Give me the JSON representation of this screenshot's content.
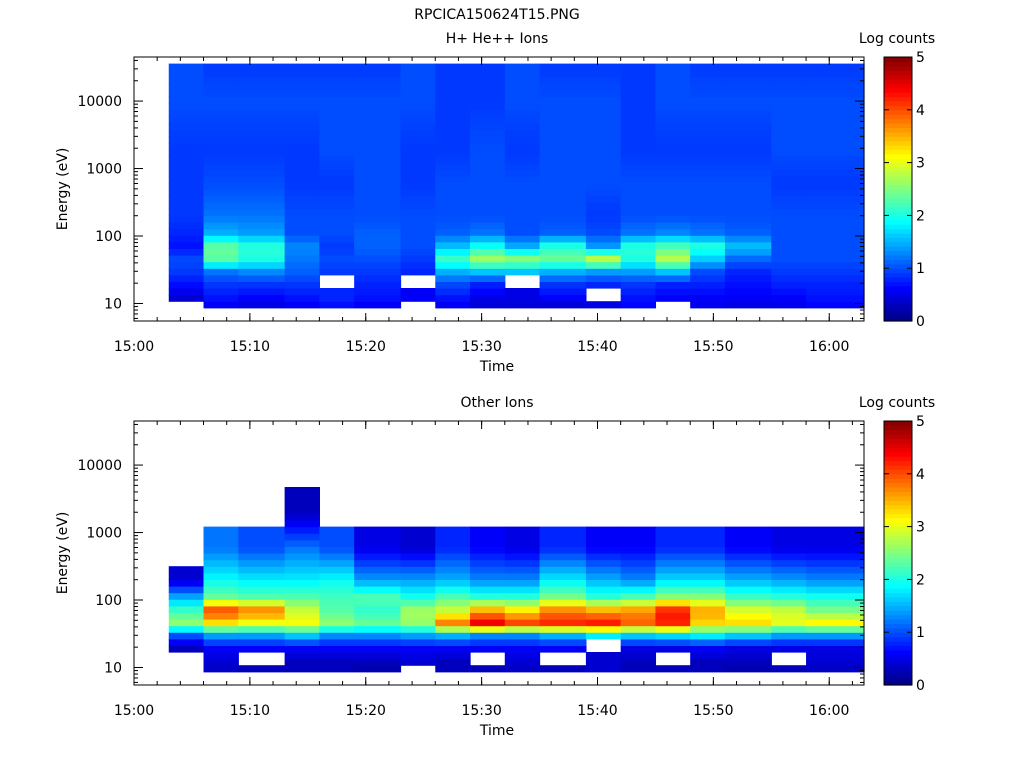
{
  "figure_title": "RPCICA150624T15.PNG",
  "colorbar_label": "Log counts",
  "colorbar_ticks": [
    "0",
    "1",
    "2",
    "3",
    "4",
    "5"
  ],
  "colormap": [
    "#00007f",
    "#0000ff",
    "#007fff",
    "#00ffff",
    "#7fff7f",
    "#ffff00",
    "#ff7f00",
    "#ff0000",
    "#7f0000"
  ],
  "chart_data": [
    {
      "type": "heatmap",
      "title": "H+ He++ Ions",
      "xlabel": "Time",
      "ylabel": "Energy (eV)",
      "x_ticks": [
        "15:00",
        "15:10",
        "15:20",
        "15:30",
        "15:40",
        "15:50",
        "16:00"
      ],
      "y_ticks": [
        "10",
        "100",
        "1000",
        "10000"
      ],
      "y_scale": "log",
      "ylim": [
        5.5,
        45000
      ],
      "xlim": [
        "15:00",
        "16:03"
      ],
      "z_range": [
        0,
        5
      ],
      "time_bins": [
        "15:03",
        "15:06",
        "15:09",
        "15:13",
        "15:16",
        "15:19",
        "15:23",
        "15:26",
        "15:29",
        "15:32",
        "15:35",
        "15:39",
        "15:42",
        "15:45",
        "15:48",
        "15:51",
        "15:55",
        "15:58"
      ],
      "profile_eV": [
        8,
        12,
        20,
        30,
        45,
        70,
        110,
        200,
        600,
        2000,
        10000,
        40000
      ],
      "profile_log_counts": [
        [
          null,
          0.4,
          0.7,
          0.9,
          1.0,
          0.7,
          0.8,
          0.9,
          0.9,
          0.9,
          1.0,
          1.0
        ],
        [
          0.5,
          0.7,
          0.9,
          1.2,
          2.3,
          2.4,
          1.5,
          1.2,
          1.0,
          0.9,
          1.0,
          0.9
        ],
        [
          0.4,
          0.6,
          0.9,
          1.3,
          2.0,
          2.1,
          1.4,
          1.2,
          1.0,
          0.9,
          1.0,
          0.9
        ],
        [
          0.5,
          0.7,
          0.9,
          1.1,
          1.2,
          1.3,
          1.0,
          1.0,
          0.9,
          0.9,
          1.0,
          0.9
        ],
        [
          0.6,
          0.8,
          null,
          0.9,
          1.0,
          0.9,
          1.0,
          1.0,
          0.9,
          1.0,
          1.0,
          0.9
        ],
        [
          0.5,
          0.7,
          0.8,
          0.9,
          1.0,
          1.1,
          1.1,
          1.0,
          1.0,
          1.0,
          1.0,
          0.9
        ],
        [
          null,
          0.6,
          null,
          0.8,
          0.9,
          1.0,
          1.0,
          1.0,
          0.9,
          0.9,
          1.0,
          1.0
        ],
        [
          0.5,
          0.7,
          1.0,
          1.5,
          2.2,
          1.6,
          1.1,
          1.0,
          1.0,
          0.9,
          0.9,
          0.9
        ],
        [
          0.4,
          0.5,
          0.8,
          1.6,
          2.7,
          2.0,
          1.2,
          1.0,
          1.0,
          1.0,
          0.9,
          0.9
        ],
        [
          0.4,
          0.5,
          null,
          1.6,
          2.6,
          1.5,
          1.0,
          1.0,
          1.0,
          0.9,
          1.0,
          1.0
        ],
        [
          0.3,
          0.6,
          0.9,
          1.5,
          2.4,
          2.1,
          1.1,
          1.0,
          1.0,
          1.0,
          1.0,
          0.9
        ],
        [
          0.5,
          null,
          0.8,
          1.4,
          2.9,
          1.4,
          1.0,
          0.9,
          1.0,
          1.0,
          1.0,
          0.9
        ],
        [
          0.6,
          0.7,
          0.9,
          1.4,
          2.0,
          2.1,
          1.2,
          1.0,
          1.0,
          0.9,
          0.9,
          0.9
        ],
        [
          null,
          0.6,
          0.8,
          1.6,
          2.8,
          2.3,
          1.3,
          1.0,
          1.0,
          0.9,
          1.0,
          1.0
        ],
        [
          0.5,
          0.6,
          0.8,
          1.0,
          1.6,
          2.1,
          1.2,
          1.0,
          1.0,
          0.9,
          1.0,
          0.9
        ],
        [
          0.4,
          0.6,
          0.7,
          0.8,
          1.1,
          1.6,
          1.1,
          1.0,
          1.0,
          0.9,
          1.0,
          0.9
        ],
        [
          0.5,
          0.6,
          0.8,
          0.9,
          1.0,
          1.0,
          1.0,
          1.0,
          0.9,
          1.0,
          1.0,
          0.9
        ],
        [
          0.6,
          0.7,
          0.8,
          0.9,
          1.0,
          1.0,
          1.0,
          1.0,
          0.9,
          1.0,
          1.0,
          0.9
        ]
      ]
    },
    {
      "type": "heatmap",
      "title": "Other Ions",
      "xlabel": "Time",
      "ylabel": "Energy (eV)",
      "x_ticks": [
        "15:00",
        "15:10",
        "15:20",
        "15:30",
        "15:40",
        "15:50",
        "16:00"
      ],
      "y_ticks": [
        "10",
        "100",
        "1000",
        "10000"
      ],
      "y_scale": "log",
      "ylim": [
        5.5,
        45000
      ],
      "xlim": [
        "15:00",
        "16:03"
      ],
      "z_range": [
        0,
        5
      ],
      "time_bins": [
        "15:03",
        "15:06",
        "15:09",
        "15:13",
        "15:16",
        "15:19",
        "15:23",
        "15:26",
        "15:29",
        "15:32",
        "15:35",
        "15:39",
        "15:42",
        "15:45",
        "15:48",
        "15:51",
        "15:55",
        "15:58"
      ],
      "profile_eV": [
        8,
        12,
        20,
        30,
        45,
        70,
        110,
        200,
        600,
        2000,
        10000,
        40000
      ],
      "profile_log_counts": [
        [
          null,
          null,
          0.3,
          1.0,
          2.6,
          2.2,
          1.5,
          0.4,
          null,
          null,
          null,
          null
        ],
        [
          0.3,
          0.4,
          0.6,
          1.4,
          3.2,
          4.1,
          2.4,
          1.9,
          1.2,
          null,
          null,
          null
        ],
        [
          0.3,
          null,
          0.6,
          1.4,
          3.0,
          3.8,
          2.3,
          1.8,
          1.0,
          null,
          null,
          null
        ],
        [
          0.3,
          0.3,
          0.6,
          1.6,
          3.1,
          2.9,
          2.3,
          1.8,
          1.2,
          0.3,
          null,
          null
        ],
        [
          0.3,
          0.3,
          0.6,
          1.3,
          2.6,
          2.3,
          2.2,
          1.9,
          1.0,
          null,
          null,
          null
        ],
        [
          0.2,
          0.3,
          0.6,
          1.3,
          2.4,
          2.1,
          2.3,
          1.4,
          0.5,
          null,
          null,
          null
        ],
        [
          null,
          0.4,
          0.6,
          1.4,
          2.6,
          2.7,
          2.0,
          1.4,
          0.4,
          null,
          null,
          null
        ],
        [
          0.3,
          0.3,
          0.6,
          1.5,
          3.8,
          2.9,
          2.3,
          1.5,
          0.8,
          null,
          null,
          null
        ],
        [
          0.3,
          null,
          0.6,
          1.3,
          4.5,
          3.6,
          2.1,
          1.3,
          0.6,
          null,
          null,
          null
        ],
        [
          0.3,
          0.4,
          0.6,
          1.3,
          4.1,
          3.3,
          2.1,
          1.3,
          0.5,
          null,
          null,
          null
        ],
        [
          0.3,
          null,
          0.6,
          1.5,
          4.2,
          3.8,
          2.5,
          1.8,
          0.8,
          null,
          null,
          null
        ],
        [
          0.4,
          0.4,
          null,
          1.8,
          4.3,
          3.6,
          2.1,
          1.5,
          0.6,
          null,
          null,
          null
        ],
        [
          0.3,
          0.3,
          0.5,
          1.6,
          3.9,
          3.7,
          2.3,
          1.3,
          0.6,
          null,
          null,
          null
        ],
        [
          0.3,
          null,
          0.5,
          1.7,
          4.2,
          4.3,
          2.6,
          1.7,
          0.8,
          null,
          null,
          null
        ],
        [
          0.3,
          0.3,
          0.6,
          1.8,
          3.3,
          3.6,
          2.6,
          1.7,
          0.8,
          null,
          null,
          null
        ],
        [
          0.2,
          0.3,
          0.5,
          1.6,
          3.3,
          3.0,
          2.2,
          1.5,
          0.6,
          null,
          null,
          null
        ],
        [
          0.3,
          null,
          0.5,
          1.4,
          3.0,
          2.9,
          2.1,
          1.4,
          0.5,
          null,
          null,
          null
        ],
        [
          0.3,
          0.4,
          0.5,
          1.4,
          3.2,
          2.5,
          2.0,
          1.3,
          0.5,
          null,
          null,
          null
        ]
      ]
    }
  ]
}
